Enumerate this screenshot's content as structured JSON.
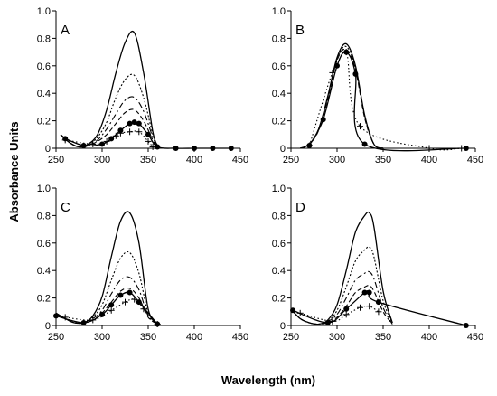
{
  "ylabel": "Absorbance Units",
  "xlabel": "Wavelength (nm)",
  "chart_data": [
    {
      "panel": "A",
      "type": "line",
      "xlim": [
        250,
        450
      ],
      "ylim": [
        0,
        1.0
      ],
      "xticks": [
        250,
        300,
        350,
        400,
        450
      ],
      "yticks": [
        0,
        0.2,
        0.4,
        0.6,
        0.8,
        1.0
      ],
      "series": [
        {
          "style": "solid",
          "x": [
            255,
            265,
            275,
            285,
            295,
            305,
            315,
            325,
            335,
            345,
            355,
            360
          ],
          "y": [
            0.1,
            0.04,
            0.01,
            0.03,
            0.1,
            0.28,
            0.55,
            0.77,
            0.84,
            0.55,
            0.12,
            0.02
          ]
        },
        {
          "style": "dotted",
          "x": [
            255,
            265,
            275,
            285,
            295,
            305,
            315,
            325,
            335,
            345,
            355,
            360
          ],
          "y": [
            0.1,
            0.04,
            0.01,
            0.02,
            0.08,
            0.19,
            0.37,
            0.5,
            0.53,
            0.37,
            0.1,
            0.02
          ]
        },
        {
          "style": "dashdot",
          "x": [
            255,
            265,
            275,
            285,
            295,
            305,
            315,
            325,
            335,
            345,
            355,
            360
          ],
          "y": [
            0.1,
            0.04,
            0.01,
            0.02,
            0.06,
            0.14,
            0.25,
            0.35,
            0.37,
            0.27,
            0.08,
            0.02
          ]
        },
        {
          "style": "dashed",
          "x": [
            255,
            265,
            275,
            285,
            295,
            305,
            315,
            325,
            335,
            345,
            355,
            360
          ],
          "y": [
            0.1,
            0.04,
            0.01,
            0.02,
            0.05,
            0.1,
            0.18,
            0.26,
            0.28,
            0.2,
            0.06,
            0.01
          ]
        },
        {
          "style": "solid-circle",
          "marker": "circle",
          "x": [
            260,
            280,
            300,
            310,
            320,
            330,
            335,
            340,
            350,
            360,
            380,
            400,
            420,
            440
          ],
          "y": [
            0.07,
            0.02,
            0.03,
            0.07,
            0.13,
            0.18,
            0.19,
            0.18,
            0.1,
            0.01,
            0,
            0,
            0,
            0
          ]
        },
        {
          "style": "dotted-plus",
          "marker": "plus",
          "x": [
            260,
            290,
            305,
            315,
            320,
            330,
            340,
            350,
            355
          ],
          "y": [
            0.06,
            0.03,
            0.05,
            0.09,
            0.11,
            0.12,
            0.12,
            0.05,
            0.01
          ]
        }
      ]
    },
    {
      "panel": "B",
      "type": "line",
      "xlim": [
        250,
        450
      ],
      "ylim": [
        0,
        1.0
      ],
      "xticks": [
        250,
        300,
        350,
        400,
        450
      ],
      "yticks": [
        0,
        0.2,
        0.4,
        0.6,
        0.8,
        1.0
      ],
      "series": [
        {
          "style": "solid",
          "x": [
            260,
            270,
            280,
            290,
            300,
            310,
            320,
            330,
            340,
            350
          ],
          "y": [
            0,
            0.03,
            0.14,
            0.38,
            0.66,
            0.76,
            0.6,
            0.24,
            0.03,
            0
          ]
        },
        {
          "style": "dotted",
          "x": [
            260,
            270,
            280,
            290,
            300,
            310,
            320,
            330,
            340,
            350
          ],
          "y": [
            0,
            0.03,
            0.14,
            0.37,
            0.65,
            0.74,
            0.58,
            0.23,
            0.03,
            0
          ]
        },
        {
          "style": "dashed",
          "x": [
            260,
            270,
            280,
            290,
            300,
            310,
            320,
            330,
            340,
            350
          ],
          "y": [
            0,
            0.03,
            0.13,
            0.36,
            0.64,
            0.72,
            0.57,
            0.22,
            0.03,
            0
          ]
        },
        {
          "style": "solid-circle",
          "marker": "circle",
          "x": [
            270,
            285,
            300,
            310,
            320,
            330,
            440
          ],
          "y": [
            0.02,
            0.21,
            0.6,
            0.7,
            0.54,
            0.03,
            0
          ]
        },
        {
          "style": "dotted-plus",
          "marker": "plus",
          "x": [
            270,
            295,
            310,
            325,
            400,
            435
          ],
          "y": [
            0.02,
            0.55,
            0.7,
            0.16,
            0,
            0
          ]
        }
      ]
    },
    {
      "panel": "C",
      "type": "line",
      "xlim": [
        250,
        450
      ],
      "ylim": [
        0,
        1.0
      ],
      "xticks": [
        250,
        300,
        350,
        400,
        450
      ],
      "yticks": [
        0,
        0.2,
        0.4,
        0.6,
        0.8,
        1.0
      ],
      "series": [
        {
          "style": "solid",
          "x": [
            250,
            260,
            270,
            280,
            290,
            300,
            310,
            320,
            330,
            340,
            350,
            360
          ],
          "y": [
            0.09,
            0.05,
            0.02,
            0.02,
            0.07,
            0.21,
            0.5,
            0.76,
            0.82,
            0.6,
            0.12,
            0.01
          ]
        },
        {
          "style": "dotted",
          "x": [
            250,
            260,
            270,
            280,
            290,
            300,
            310,
            320,
            330,
            340,
            350,
            360
          ],
          "y": [
            0.09,
            0.05,
            0.02,
            0.02,
            0.06,
            0.15,
            0.33,
            0.49,
            0.53,
            0.38,
            0.09,
            0.01
          ]
        },
        {
          "style": "dashdot",
          "x": [
            250,
            260,
            270,
            280,
            290,
            300,
            310,
            320,
            330,
            340,
            350,
            360
          ],
          "y": [
            0.09,
            0.05,
            0.02,
            0.02,
            0.05,
            0.11,
            0.23,
            0.33,
            0.35,
            0.26,
            0.07,
            0.01
          ]
        },
        {
          "style": "dashed",
          "x": [
            250,
            260,
            270,
            280,
            290,
            300,
            310,
            320,
            330,
            340,
            350,
            360
          ],
          "y": [
            0.09,
            0.05,
            0.02,
            0.02,
            0.04,
            0.09,
            0.17,
            0.25,
            0.27,
            0.2,
            0.06,
            0.01
          ]
        },
        {
          "style": "solid-circle",
          "marker": "circle",
          "x": [
            250,
            280,
            300,
            310,
            320,
            330,
            340,
            360
          ],
          "y": [
            0.07,
            0.02,
            0.08,
            0.15,
            0.22,
            0.24,
            0.17,
            0.01
          ]
        },
        {
          "style": "dotted-plus",
          "marker": "plus",
          "x": [
            260,
            290,
            310,
            325,
            335,
            345,
            360
          ],
          "y": [
            0.06,
            0.04,
            0.11,
            0.17,
            0.19,
            0.12,
            0.01
          ]
        }
      ]
    },
    {
      "panel": "D",
      "type": "line",
      "xlim": [
        250,
        450
      ],
      "ylim": [
        0,
        1.0
      ],
      "xticks": [
        250,
        300,
        350,
        400,
        450
      ],
      "yticks": [
        0,
        0.2,
        0.4,
        0.6,
        0.8,
        1.0
      ],
      "series": [
        {
          "style": "solid",
          "x": [
            250,
            260,
            270,
            280,
            290,
            300,
            310,
            320,
            330,
            335,
            340,
            350,
            360
          ],
          "y": [
            0.12,
            0.05,
            0.02,
            0.01,
            0.04,
            0.15,
            0.4,
            0.68,
            0.8,
            0.82,
            0.72,
            0.25,
            0.02
          ]
        },
        {
          "style": "dotted",
          "x": [
            250,
            260,
            270,
            280,
            290,
            300,
            310,
            320,
            330,
            335,
            340,
            350,
            360
          ],
          "y": [
            0.12,
            0.05,
            0.02,
            0.01,
            0.03,
            0.11,
            0.28,
            0.47,
            0.55,
            0.57,
            0.5,
            0.18,
            0.02
          ]
        },
        {
          "style": "dashdot",
          "x": [
            250,
            260,
            270,
            280,
            290,
            300,
            310,
            320,
            330,
            335,
            340,
            350,
            360
          ],
          "y": [
            0.12,
            0.05,
            0.02,
            0.01,
            0.03,
            0.08,
            0.2,
            0.33,
            0.38,
            0.39,
            0.34,
            0.13,
            0.01
          ]
        },
        {
          "style": "dashed",
          "x": [
            250,
            260,
            270,
            280,
            290,
            300,
            310,
            320,
            330,
            335,
            340,
            350,
            360
          ],
          "y": [
            0.12,
            0.05,
            0.02,
            0.01,
            0.02,
            0.06,
            0.14,
            0.24,
            0.28,
            0.29,
            0.25,
            0.1,
            0.01
          ]
        },
        {
          "style": "solid-circle",
          "marker": "circle",
          "x": [
            252,
            290,
            310,
            330,
            335,
            345,
            440
          ],
          "y": [
            0.11,
            0.02,
            0.12,
            0.24,
            0.24,
            0.17,
            0
          ]
        },
        {
          "style": "dotted-plus",
          "marker": "plus",
          "x": [
            260,
            295,
            310,
            325,
            335,
            345
          ],
          "y": [
            0.09,
            0.03,
            0.08,
            0.13,
            0.14,
            0.1
          ]
        }
      ]
    }
  ]
}
